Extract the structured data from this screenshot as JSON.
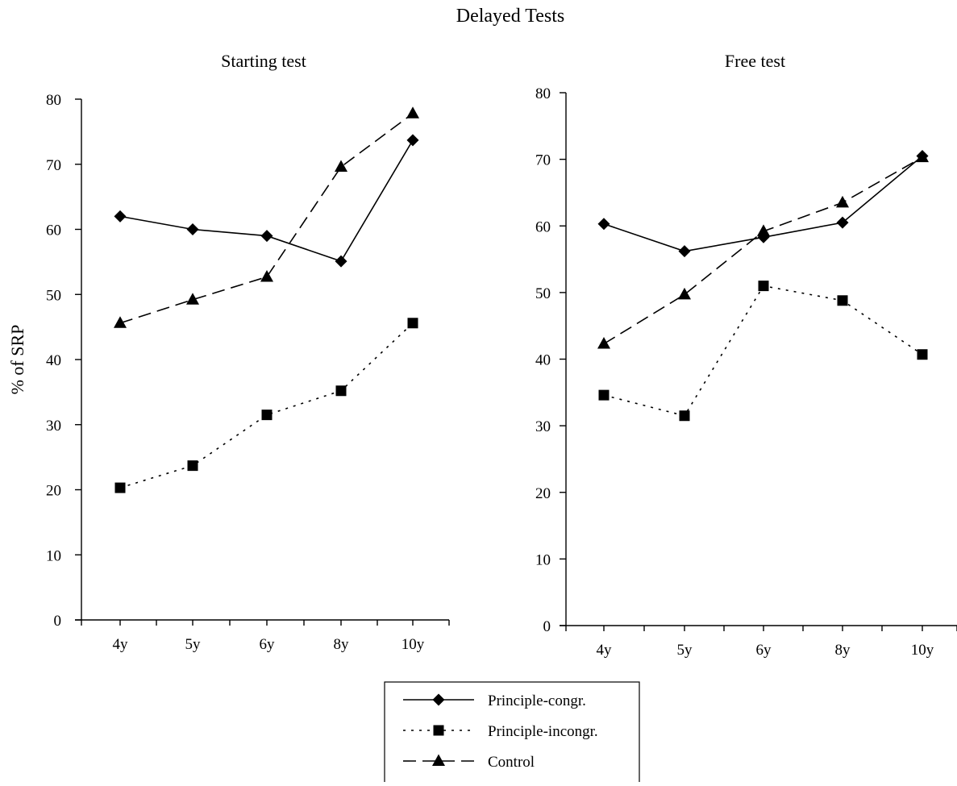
{
  "figure_title": "Delayed Tests",
  "colors": {
    "ink": "#000000",
    "background": "#ffffff"
  },
  "chart_data": [
    {
      "type": "line",
      "title": "Starting test",
      "xlabel": "",
      "ylabel": "% of SRP",
      "categories": [
        "4y",
        "5y",
        "6y",
        "8y",
        "10y"
      ],
      "ylim": [
        0,
        80
      ],
      "yticks": [
        0,
        10,
        20,
        30,
        40,
        50,
        60,
        70,
        80
      ],
      "grid": false,
      "series": [
        {
          "name": "Principle-congr.",
          "values": [
            62,
            60,
            59,
            55.1,
            73.7
          ],
          "marker": "diamond",
          "line_style": "solid"
        },
        {
          "name": "Principle-incongr.",
          "values": [
            20.3,
            23.7,
            31.5,
            35.2,
            45.6
          ],
          "marker": "square",
          "line_style": "dotted"
        },
        {
          "name": "Control",
          "values": [
            45.6,
            49.2,
            52.7,
            69.6,
            77.8
          ],
          "marker": "triangle",
          "line_style": "dashed"
        }
      ]
    },
    {
      "type": "line",
      "title": "Free test",
      "xlabel": "",
      "ylabel": "",
      "categories": [
        "4y",
        "5y",
        "6y",
        "8y",
        "10y"
      ],
      "ylim": [
        0,
        80
      ],
      "yticks": [
        0,
        10,
        20,
        30,
        40,
        50,
        60,
        70,
        80
      ],
      "grid": false,
      "series": [
        {
          "name": "Principle-congr.",
          "values": [
            60.3,
            56.2,
            58.3,
            60.5,
            70.5
          ],
          "marker": "diamond",
          "line_style": "solid"
        },
        {
          "name": "Principle-incongr.",
          "values": [
            34.6,
            31.5,
            51,
            48.8,
            40.7
          ],
          "marker": "square",
          "line_style": "dotted"
        },
        {
          "name": "Control",
          "values": [
            42.3,
            49.7,
            59.2,
            63.5,
            70.3
          ],
          "marker": "triangle",
          "line_style": "dashed"
        }
      ]
    }
  ],
  "legend": {
    "placement": "bottom-center",
    "entries": [
      {
        "label": "Principle-congr.",
        "marker": "diamond",
        "line_style": "solid"
      },
      {
        "label": "Principle-incongr.",
        "marker": "square",
        "line_style": "dotted"
      },
      {
        "label": "Control",
        "marker": "triangle",
        "line_style": "dashed"
      }
    ]
  }
}
